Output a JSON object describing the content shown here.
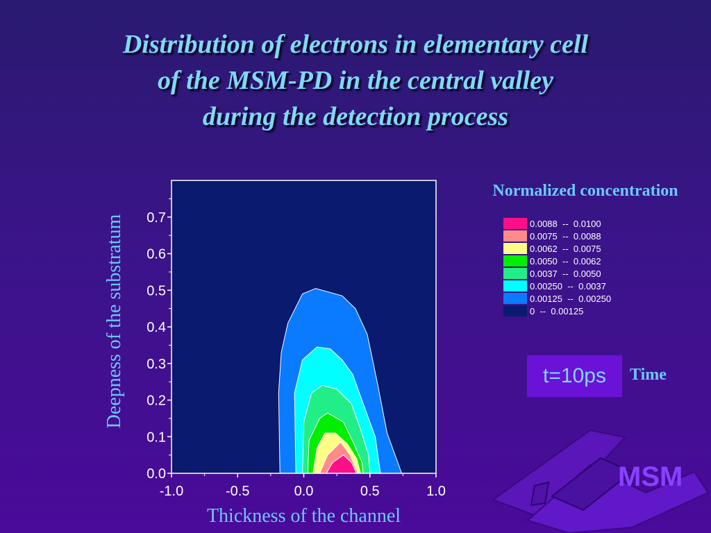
{
  "title_lines": [
    "Distribution of electrons in elementary cell",
    "of the MSM-PD in the central valley",
    "during the detection process"
  ],
  "time_box": "t=10ps",
  "time_label": "Time",
  "logo_text": "MSM",
  "colors": {
    "background": "#3a1488",
    "plot_background": "#0a1a6e",
    "title": "#7fd8f8",
    "axis_text": "#6cc8ff"
  },
  "chart_data": {
    "type": "contour",
    "xlabel": "Thickness of the channel",
    "ylabel": "Deepness of the substratum",
    "xlim": [
      -1.0,
      1.0
    ],
    "ylim": [
      0.0,
      0.8
    ],
    "xticks": [
      -1.0,
      -0.5,
      0.0,
      0.5,
      1.0
    ],
    "xtick_labels": [
      "-1.0",
      "-0.5",
      "0.0",
      "0.5",
      "1.0"
    ],
    "yticks": [
      0.0,
      0.1,
      0.2,
      0.3,
      0.4,
      0.5,
      0.6,
      0.7
    ],
    "ytick_labels": [
      "0.0",
      "0.1",
      "0.2",
      "0.3",
      "0.4",
      "0.5",
      "0.6",
      "0.7"
    ],
    "legend_title": "Normalized concentration",
    "legend": [
      {
        "label": "0.0088  --  0.0100",
        "color": "#ff0e8a"
      },
      {
        "label": "0.0075  --  0.0088",
        "color": "#ff8a8a"
      },
      {
        "label": "0.0062  --  0.0075",
        "color": "#ffff88"
      },
      {
        "label": "0.0050  --  0.0062",
        "color": "#00ee00"
      },
      {
        "label": "0.0037  --  0.0050",
        "color": "#22ee88"
      },
      {
        "label": "0.00250  --  0.0037",
        "color": "#00ffff"
      },
      {
        "label": "0.00125  --  0.00250",
        "color": "#0a7aff"
      },
      {
        "label": "0  --  0.00125",
        "color": "#0a1a6e"
      }
    ],
    "contours": [
      {
        "level": "0.00125",
        "color": "#0a7aff",
        "points": [
          [
            -0.18,
            0.0
          ],
          [
            -0.19,
            0.22
          ],
          [
            -0.17,
            0.33
          ],
          [
            -0.12,
            0.41
          ],
          [
            -0.01,
            0.49
          ],
          [
            0.09,
            0.505
          ],
          [
            0.29,
            0.485
          ],
          [
            0.39,
            0.45
          ],
          [
            0.48,
            0.38
          ],
          [
            0.56,
            0.24
          ],
          [
            0.63,
            0.11
          ],
          [
            0.74,
            0.0
          ]
        ]
      },
      {
        "level": "0.00250",
        "color": "#00ffff",
        "points": [
          [
            -0.06,
            0.0
          ],
          [
            -0.07,
            0.22
          ],
          [
            -0.01,
            0.31
          ],
          [
            0.1,
            0.345
          ],
          [
            0.2,
            0.34
          ],
          [
            0.29,
            0.31
          ],
          [
            0.37,
            0.27
          ],
          [
            0.45,
            0.19
          ],
          [
            0.54,
            0.1
          ],
          [
            0.58,
            0.0
          ]
        ]
      },
      {
        "level": "0.0037",
        "color": "#22ee88",
        "points": [
          [
            -0.01,
            0.0
          ],
          [
            0.0,
            0.14
          ],
          [
            0.06,
            0.22
          ],
          [
            0.14,
            0.24
          ],
          [
            0.25,
            0.23
          ],
          [
            0.36,
            0.19
          ],
          [
            0.43,
            0.12
          ],
          [
            0.49,
            0.05
          ],
          [
            0.5,
            0.0
          ]
        ]
      },
      {
        "level": "0.0050",
        "color": "#00ee00",
        "points": [
          [
            0.03,
            0.0
          ],
          [
            0.04,
            0.09
          ],
          [
            0.12,
            0.15
          ],
          [
            0.18,
            0.165
          ],
          [
            0.3,
            0.14
          ],
          [
            0.38,
            0.08
          ],
          [
            0.44,
            0.03
          ],
          [
            0.45,
            0.0
          ]
        ]
      },
      {
        "level": "0.0062",
        "color": "#ffff88",
        "points": [
          [
            0.07,
            0.0
          ],
          [
            0.1,
            0.07
          ],
          [
            0.16,
            0.11
          ],
          [
            0.24,
            0.11
          ],
          [
            0.33,
            0.08
          ],
          [
            0.4,
            0.04
          ],
          [
            0.43,
            0.0
          ]
        ]
      },
      {
        "level": "0.0075",
        "color": "#ff8a8a",
        "points": [
          [
            0.12,
            0.0
          ],
          [
            0.18,
            0.05
          ],
          [
            0.28,
            0.085
          ],
          [
            0.35,
            0.05
          ],
          [
            0.41,
            0.0
          ]
        ]
      },
      {
        "level": "0.0088",
        "color": "#ff0e8a",
        "points": [
          [
            0.17,
            0.0
          ],
          [
            0.22,
            0.03
          ],
          [
            0.3,
            0.05
          ],
          [
            0.36,
            0.03
          ],
          [
            0.4,
            0.0
          ]
        ]
      }
    ]
  }
}
